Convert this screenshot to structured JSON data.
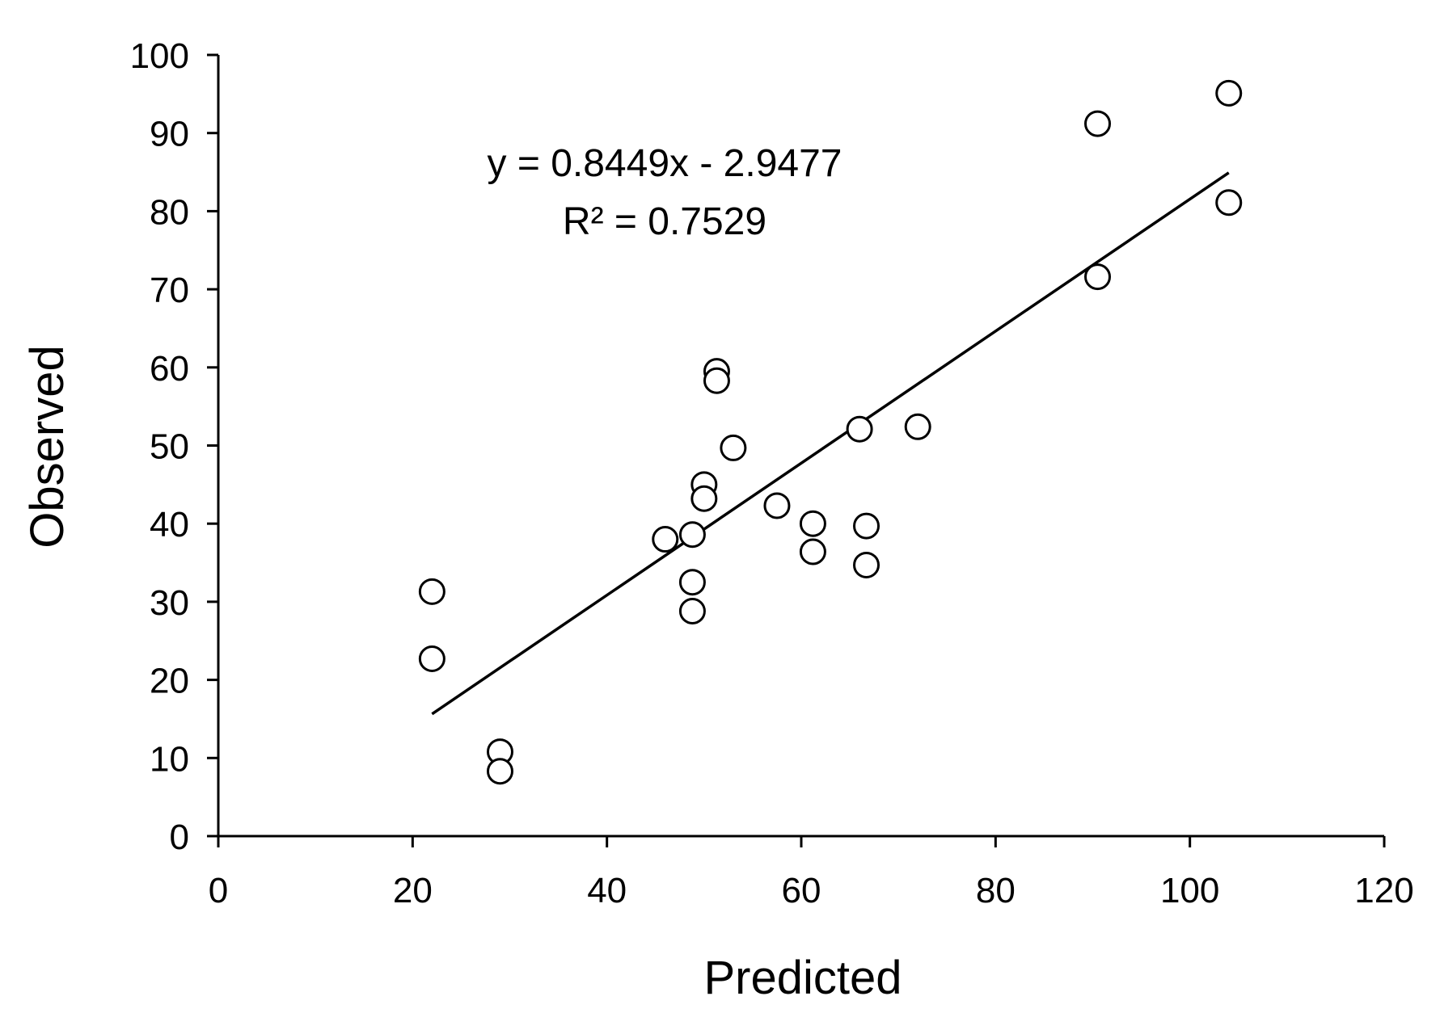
{
  "chart_data": {
    "type": "scatter",
    "title": "",
    "xlabel": "Predicted",
    "ylabel": "Observed",
    "xlim": [
      0,
      120
    ],
    "ylim": [
      0,
      100
    ],
    "x_ticks": [
      0,
      20,
      40,
      60,
      80,
      100,
      120
    ],
    "y_ticks": [
      0,
      10,
      20,
      30,
      40,
      50,
      60,
      70,
      80,
      90,
      100
    ],
    "grid": false,
    "legend": "none",
    "marker": "open-circle",
    "marker_color": "#000000",
    "points": [
      {
        "x": 22.0,
        "y": 31.3
      },
      {
        "x": 22.0,
        "y": 22.7
      },
      {
        "x": 29.0,
        "y": 10.8
      },
      {
        "x": 29.0,
        "y": 8.3
      },
      {
        "x": 46.0,
        "y": 38.0
      },
      {
        "x": 48.8,
        "y": 38.6
      },
      {
        "x": 48.8,
        "y": 32.5
      },
      {
        "x": 48.8,
        "y": 28.8
      },
      {
        "x": 50.0,
        "y": 45.0
      },
      {
        "x": 50.0,
        "y": 43.2
      },
      {
        "x": 51.3,
        "y": 59.5
      },
      {
        "x": 51.3,
        "y": 58.3
      },
      {
        "x": 53.0,
        "y": 49.7
      },
      {
        "x": 57.5,
        "y": 42.3
      },
      {
        "x": 61.2,
        "y": 40.0
      },
      {
        "x": 61.2,
        "y": 36.4
      },
      {
        "x": 66.0,
        "y": 52.1
      },
      {
        "x": 66.7,
        "y": 39.7
      },
      {
        "x": 66.7,
        "y": 34.7
      },
      {
        "x": 72.0,
        "y": 52.4
      },
      {
        "x": 90.5,
        "y": 91.2
      },
      {
        "x": 90.5,
        "y": 71.6
      },
      {
        "x": 104.0,
        "y": 95.1
      },
      {
        "x": 104.0,
        "y": 81.1
      }
    ],
    "trendline": {
      "slope": 0.8449,
      "intercept": -2.9477,
      "x_range": [
        22.0,
        104.0
      ],
      "equation_label": "y = 0.8449x - 2.9477",
      "r2_label": "R² = 0.7529"
    }
  }
}
